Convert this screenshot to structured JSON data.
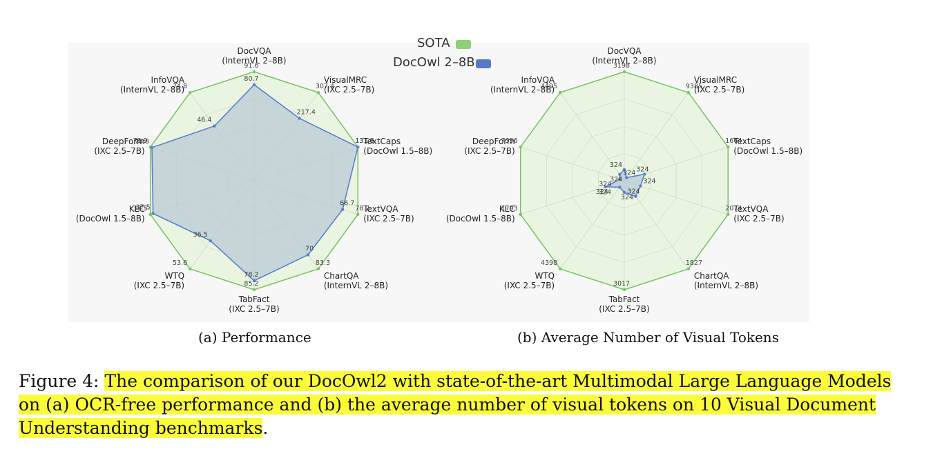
{
  "colors": {
    "sota_fill": "#e6f4dc",
    "sota_stroke": "#7cc466",
    "model_fill": "#b8cad6",
    "model_stroke": "#5b7fd0",
    "highlight": "#fbfb3c"
  },
  "legend": {
    "sota_label": "SOTA",
    "model_label": "DocOwl 2–8B",
    "sota_color": "#8fcf78",
    "model_color": "#5a78c8"
  },
  "chart_data": [
    {
      "type": "radar",
      "caption": "(a) Performance",
      "axes": [
        {
          "name": "DocVQA",
          "sub": "(InternVL 2–8B)"
        },
        {
          "name": "VisualMRC",
          "sub": "(IXC 2.5–7B)"
        },
        {
          "name": "TextCaps",
          "sub": "(DocOwl 1.5–8B)"
        },
        {
          "name": "TextVQA",
          "sub": "(IXC 2.5–7B)"
        },
        {
          "name": "ChartQA",
          "sub": "(InternVL 2–8B)"
        },
        {
          "name": "TabFact",
          "sub": "(IXC 2.5–7B)"
        },
        {
          "name": "WTQ",
          "sub": "(IXC 2.5–7B)"
        },
        {
          "name": "KLC",
          "sub": "(DocOwl 1.5–8B)"
        },
        {
          "name": "DeepForm",
          "sub": "(IXC 2.5–7B)"
        },
        {
          "name": "InfoVQA",
          "sub": "(InternVL 2–8B)"
        }
      ],
      "series": [
        {
          "name": "SOTA",
          "values": [
            91.6,
            307.4,
            131.6,
            78.2,
            83.3,
            85.2,
            53.6,
            38.5,
            71.9,
            74.8
          ],
          "labels": [
            "91.6",
            "307.4",
            "131.6",
            "78.2",
            "83.3",
            "85.2",
            "53.6",
            "38.5",
            "71.9",
            "74.8"
          ]
        },
        {
          "name": "DocOwl 2–8B",
          "values": [
            80.7,
            217.4,
            131.8,
            66.7,
            70,
            78.2,
            36.5,
            37.5,
            70.8,
            46.4
          ],
          "labels": [
            "80.7",
            "217.4",
            "131.8",
            "66.7",
            "70",
            "78.2",
            "36.5",
            "37.5",
            "70.8",
            "46.4"
          ]
        }
      ]
    },
    {
      "type": "radar",
      "caption": "(b) Average Number of Visual Tokens",
      "axes": [
        {
          "name": "DocVQA",
          "sub": "(InternVL 2–8B)"
        },
        {
          "name": "VisualMRC",
          "sub": "(IXC 2.5–7B)"
        },
        {
          "name": "TextCaps",
          "sub": "(DocOwl 1.5–8B)"
        },
        {
          "name": "TextVQA",
          "sub": "(IXC 2.5–7B)"
        },
        {
          "name": "ChartQA",
          "sub": "(InternVL 2–8B)"
        },
        {
          "name": "TabFact",
          "sub": "(IXC 2.5–7B)"
        },
        {
          "name": "WTQ",
          "sub": "(IXC 2.5–7B)"
        },
        {
          "name": "KLC",
          "sub": "(DocOwl 1.5–8B)"
        },
        {
          "name": "DeepForm",
          "sub": "(IXC 2.5–7B)"
        },
        {
          "name": "InfoVQA",
          "sub": "(InternVL 2–8B)"
        }
      ],
      "series": [
        {
          "name": "SOTA",
          "values": [
            3198,
            9385,
            1664,
            2074,
            1827,
            3017,
            4398,
            1793,
            7356,
            4495
          ],
          "labels": [
            "3198",
            "9385",
            "1664",
            "2074",
            "1827",
            "3017",
            "4398",
            "1793",
            "7356",
            "4495"
          ]
        },
        {
          "name": "DocOwl 2–8B",
          "values": [
            324,
            324,
            324,
            324,
            324,
            324,
            324,
            324,
            324,
            324
          ],
          "labels": [
            "324",
            "324",
            "324",
            "324",
            "324",
            "324",
            "324",
            "324",
            "324",
            "324"
          ]
        }
      ]
    }
  ],
  "caption": {
    "prefix": "Figure 4: ",
    "text": "The comparison of our DocOwl2 with state-of-the-art Multimodal Large Language Models on (a) OCR-free performance and (b) the average number of visual tokens on 10 Visual Document Understanding benchmarks",
    "suffix": "."
  }
}
